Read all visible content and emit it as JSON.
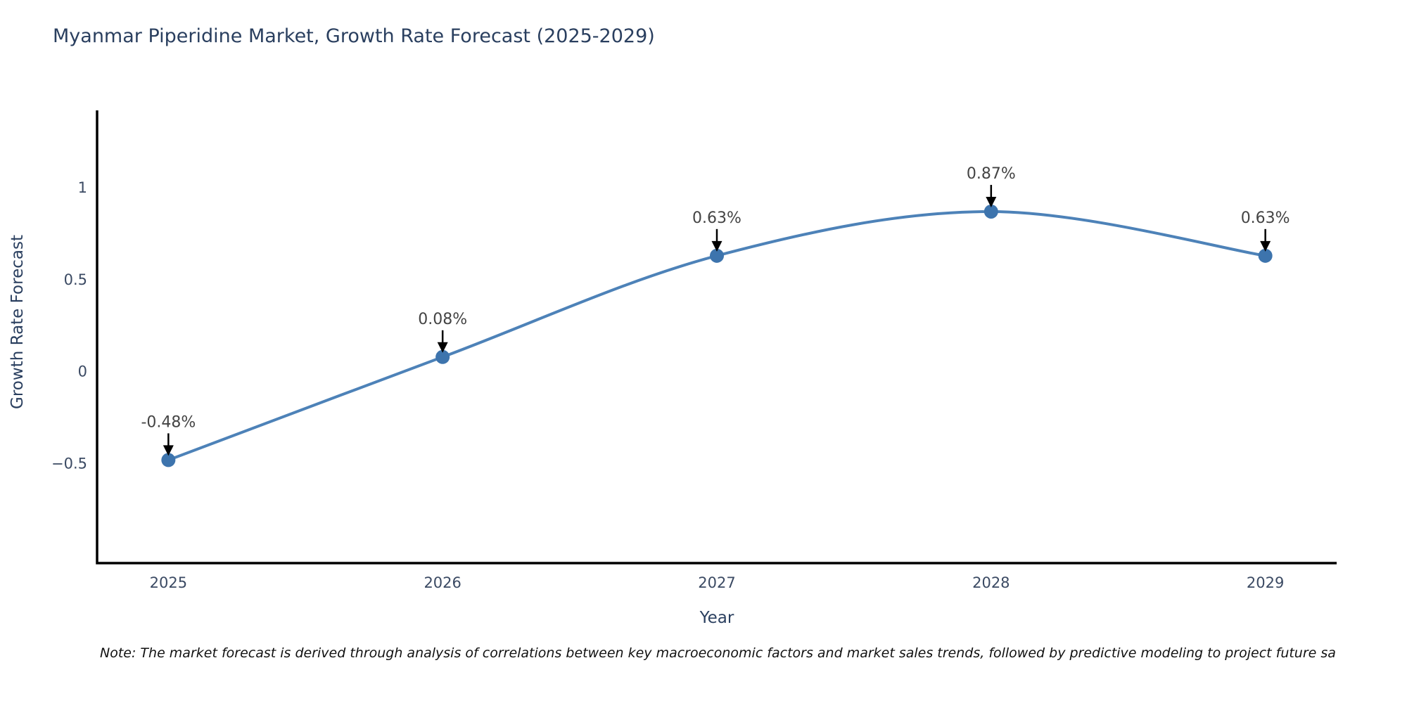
{
  "title": "Myanmar Piperidine Market, Growth Rate Forecast (2025-2029)",
  "note": "Note: The market forecast is derived through analysis of correlations between key macroeconomic factors and market sales trends, followed by predictive modeling to project future sa",
  "chart_data": {
    "type": "line",
    "line_shape": "spline",
    "x": [
      2025,
      2026,
      2027,
      2028,
      2029
    ],
    "values": [
      -0.48,
      0.08,
      0.63,
      0.87,
      0.63
    ],
    "point_labels": [
      "-0.48%",
      "0.08%",
      "0.63%",
      "0.87%",
      "0.63%"
    ],
    "xtick_labels": [
      "2025",
      "2026",
      "2027",
      "2028",
      "2029"
    ],
    "yticks": [
      {
        "v": 1,
        "label": "1"
      },
      {
        "v": 0.5,
        "label": "0.5"
      },
      {
        "v": 0,
        "label": "0"
      },
      {
        "v": -0.5,
        "label": "−0.5"
      }
    ],
    "xlabel": "Year",
    "ylabel": "Growth Rate Forecast",
    "xlim": [
      2024.74,
      2029.26
    ],
    "ylim": [
      -1.04,
      1.42
    ],
    "grid": false,
    "legend": "none",
    "annotations_have_arrows": true
  },
  "colors": {
    "background": "#ffffff",
    "title_text": "#2a3f5f",
    "axis_line": "#000000",
    "tick_text": "#3b4a63",
    "axis_title_text": "#2a3f5f",
    "annotation_text": "#444444",
    "annotation_arrow": "#000000",
    "line": "#4d82b8",
    "marker": "#3d74ad",
    "note_text": "#111111"
  }
}
